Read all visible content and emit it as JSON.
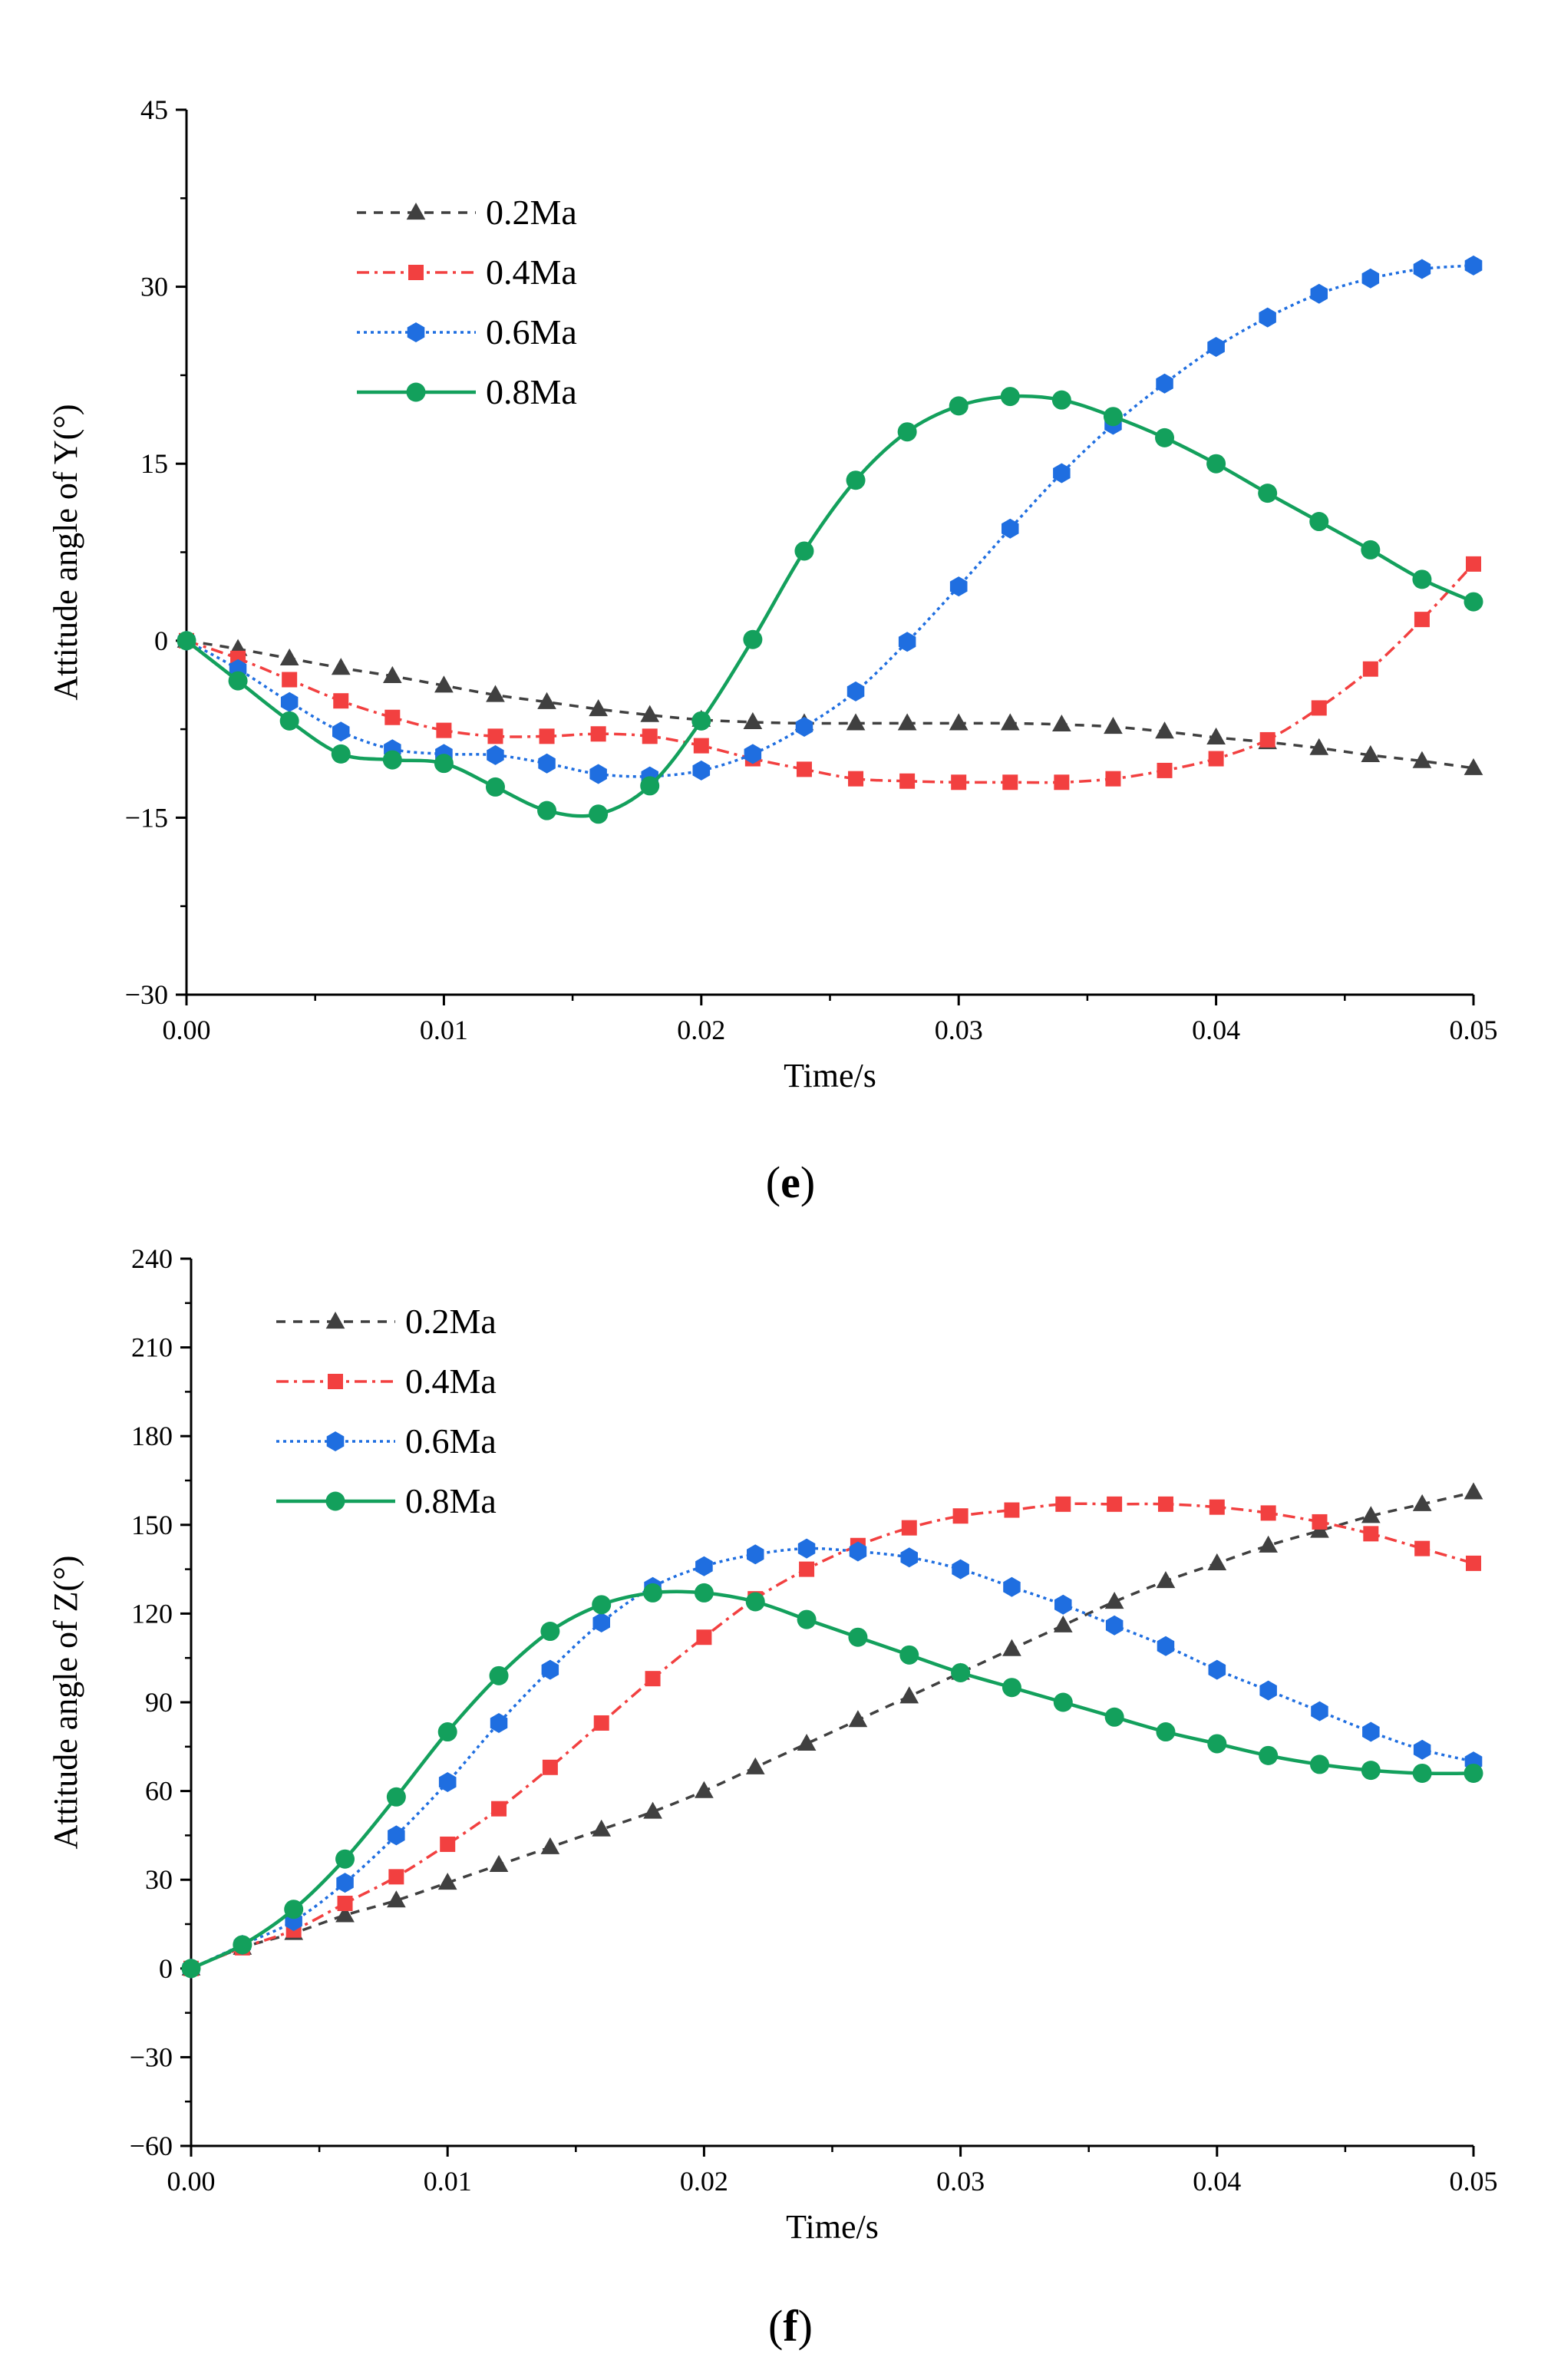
{
  "chart_data": [
    {
      "type": "line",
      "panel_label": "e",
      "title": "",
      "xlabel": "Time/s",
      "ylabel": "Attitude angle of Y(°)",
      "xlim": [
        0,
        0.05
      ],
      "ylim": [
        -30,
        45
      ],
      "xticks": [
        "0.00",
        "0.01",
        "0.02",
        "0.03",
        "0.04",
        "0.05"
      ],
      "yticks": [
        "−30",
        "−15",
        "0",
        "15",
        "30",
        "45"
      ],
      "legend_position": "top-left",
      "x": [
        0,
        0.002,
        0.004,
        0.006,
        0.008,
        0.01,
        0.012,
        0.014,
        0.016,
        0.018,
        0.02,
        0.022,
        0.024,
        0.026,
        0.028,
        0.03,
        0.032,
        0.034,
        0.036,
        0.038,
        0.04,
        0.042,
        0.044,
        0.046,
        0.048,
        0.05
      ],
      "series": [
        {
          "name": "0.2Ma",
          "color": "#404040",
          "marker": "triangle",
          "dash": "12,10",
          "values": [
            0,
            -0.7,
            -1.5,
            -2.3,
            -3.0,
            -3.8,
            -4.6,
            -5.2,
            -5.8,
            -6.3,
            -6.7,
            -6.9,
            -7.0,
            -7.0,
            -7.0,
            -7.0,
            -7.0,
            -7.1,
            -7.3,
            -7.7,
            -8.2,
            -8.6,
            -9.1,
            -9.7,
            -10.2,
            -10.8
          ]
        },
        {
          "name": "0.4Ma",
          "color": "#f24040",
          "marker": "square",
          "dash": "16,7,4,7",
          "values": [
            0,
            -1.5,
            -3.3,
            -5.1,
            -6.5,
            -7.6,
            -8.1,
            -8.1,
            -7.9,
            -8.1,
            -8.9,
            -10.0,
            -10.9,
            -11.7,
            -11.9,
            -12.0,
            -12.0,
            -12.0,
            -11.7,
            -11.0,
            -10.0,
            -8.4,
            -5.7,
            -2.4,
            1.8,
            6.5
          ]
        },
        {
          "name": "0.6Ma",
          "color": "#1f6ee0",
          "marker": "hexagon",
          "dash": "4,5",
          "values": [
            0,
            -2.4,
            -5.2,
            -7.7,
            -9.2,
            -9.6,
            -9.7,
            -10.4,
            -11.3,
            -11.5,
            -11.0,
            -9.6,
            -7.3,
            -4.3,
            -0.1,
            4.6,
            9.5,
            14.2,
            18.3,
            21.8,
            24.9,
            27.4,
            29.4,
            30.7,
            31.5,
            31.8
          ]
        },
        {
          "name": "0.8Ma",
          "color": "#13a05c",
          "marker": "circle",
          "dash": "",
          "values": [
            0,
            -3.4,
            -6.8,
            -9.6,
            -10.1,
            -10.4,
            -12.4,
            -14.4,
            -14.7,
            -12.3,
            -6.8,
            0.1,
            7.6,
            13.6,
            17.7,
            19.9,
            20.7,
            20.4,
            19.0,
            17.2,
            15.0,
            12.5,
            10.1,
            7.7,
            5.2,
            3.3
          ]
        }
      ]
    },
    {
      "type": "line",
      "panel_label": "f",
      "title": "",
      "xlabel": "Time/s",
      "ylabel": "Attitude angle of Z(°)",
      "xlim": [
        0,
        0.05
      ],
      "ylim": [
        -60,
        240
      ],
      "xticks": [
        "0.00",
        "0.01",
        "0.02",
        "0.03",
        "0.04",
        "0.05"
      ],
      "yticks": [
        "−60",
        "−30",
        "0",
        "30",
        "60",
        "90",
        "120",
        "150",
        "180",
        "210",
        "240"
      ],
      "legend_position": "top-left",
      "x": [
        0,
        0.002,
        0.004,
        0.006,
        0.008,
        0.01,
        0.012,
        0.014,
        0.016,
        0.018,
        0.02,
        0.022,
        0.024,
        0.026,
        0.028,
        0.03,
        0.032,
        0.034,
        0.036,
        0.038,
        0.04,
        0.042,
        0.044,
        0.046,
        0.048,
        0.05
      ],
      "series": [
        {
          "name": "0.2Ma",
          "color": "#404040",
          "marker": "triangle",
          "dash": "12,10",
          "values": [
            0,
            7,
            12,
            18,
            23,
            29,
            35,
            41,
            47,
            53,
            60,
            68,
            76,
            84,
            92,
            100,
            108,
            116,
            124,
            131,
            137,
            143,
            148,
            153,
            157,
            161
          ]
        },
        {
          "name": "0.4Ma",
          "color": "#f24040",
          "marker": "square",
          "dash": "16,7,4,7",
          "values": [
            0,
            7,
            13,
            22,
            31,
            42,
            54,
            68,
            83,
            98,
            112,
            125,
            135,
            143,
            149,
            153,
            155,
            157,
            157,
            157,
            156,
            154,
            151,
            147,
            142,
            137
          ]
        },
        {
          "name": "0.6Ma",
          "color": "#1f6ee0",
          "marker": "hexagon",
          "dash": "4,5",
          "values": [
            0,
            8,
            16,
            29,
            45,
            63,
            83,
            101,
            117,
            129,
            136,
            140,
            142,
            141,
            139,
            135,
            129,
            123,
            116,
            109,
            101,
            94,
            87,
            80,
            74,
            70
          ]
        },
        {
          "name": "0.8Ma",
          "color": "#13a05c",
          "marker": "circle",
          "dash": "",
          "values": [
            0,
            8,
            20,
            37,
            58,
            80,
            99,
            114,
            123,
            127,
            127,
            124,
            118,
            112,
            106,
            100,
            95,
            90,
            85,
            80,
            76,
            72,
            69,
            67,
            66,
            66
          ]
        }
      ]
    }
  ]
}
